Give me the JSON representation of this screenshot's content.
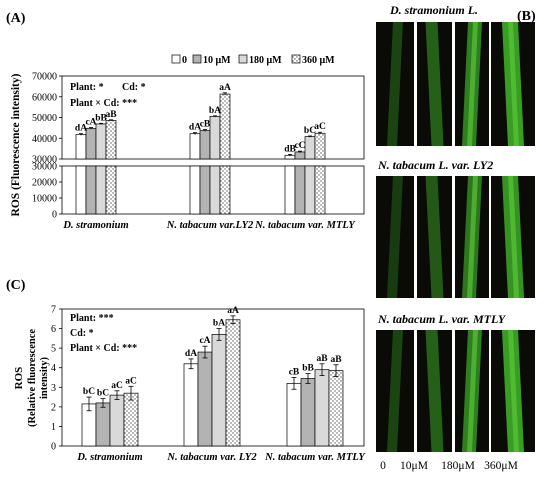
{
  "panel_labels": {
    "a": "(A)",
    "b": "(B)",
    "c": "(C)"
  },
  "chart_data": [
    {
      "type": "bar",
      "panel": "(A)",
      "categories": [
        "D. stramonium",
        "N. tabacum var.LY2",
        "N. tabacum var. MTLY"
      ],
      "ylabel": "ROS (Fluorescence intensity)",
      "ylim": [
        0,
        70000
      ],
      "broken_axis": {
        "lower": [
          0,
          30000
        ],
        "upper": [
          30000,
          70000
        ]
      },
      "y_ticks_upper": [
        "70000",
        "60000",
        "50000",
        "40000",
        "30000"
      ],
      "y_ticks_lower": [
        "30000",
        "20000",
        "10000",
        "0"
      ],
      "legend": [
        "0",
        "10 μM",
        "180 μM",
        "360 μM"
      ],
      "legend_position": "top-right",
      "stats": [
        "Plant: *",
        "Cd: *",
        "Plant × Cd: ***"
      ],
      "series": [
        {
          "name": "0",
          "values": [
            41800,
            42200,
            31800
          ],
          "errors": [
            400,
            500,
            400
          ],
          "labels": [
            "dA",
            "dA",
            "dB"
          ]
        },
        {
          "name": "10 μM",
          "values": [
            44800,
            43700,
            33400
          ],
          "errors": [
            400,
            500,
            400
          ],
          "labels": [
            "cA",
            "cB",
            "cC"
          ]
        },
        {
          "name": "180 μM",
          "values": [
            46900,
            50500,
            40800
          ],
          "errors": [
            300,
            300,
            300
          ],
          "labels": [
            "bB",
            "bA",
            "bC"
          ]
        },
        {
          "name": "360 μM",
          "values": [
            48600,
            61300,
            42400
          ],
          "errors": [
            300,
            600,
            500
          ],
          "labels": [
            "aB",
            "aA",
            "aC"
          ]
        }
      ]
    },
    {
      "type": "bar",
      "panel": "(C)",
      "categories": [
        "D. stramonium",
        "N. tabacum var. LY2",
        "N. tabacum var. MTLY"
      ],
      "ylabel": "ROS (Relative fluorescence intensity)",
      "ylim": [
        0,
        7
      ],
      "y_ticks": [
        "0",
        "1",
        "2",
        "3",
        "4",
        "5",
        "6",
        "7"
      ],
      "stats": [
        "Plant: ***",
        "Cd: *",
        "Plant × Cd: ***"
      ],
      "series": [
        {
          "name": "0",
          "values": [
            2.15,
            4.2,
            3.2
          ],
          "errors": [
            0.35,
            0.25,
            0.3
          ],
          "labels": [
            "bC",
            "dA",
            "cB"
          ]
        },
        {
          "name": "10 μM",
          "values": [
            2.2,
            4.8,
            3.45
          ],
          "errors": [
            0.22,
            0.3,
            0.25
          ],
          "labels": [
            "bC",
            "cA",
            "bB"
          ]
        },
        {
          "name": "180 μM",
          "values": [
            2.6,
            5.7,
            3.9
          ],
          "errors": [
            0.22,
            0.3,
            0.3
          ],
          "labels": [
            "aC",
            "bA",
            "aB"
          ]
        },
        {
          "name": "360 μM",
          "values": [
            2.7,
            6.45,
            3.85
          ],
          "errors": [
            0.35,
            0.2,
            0.3
          ],
          "labels": [
            "aC",
            "aA",
            "aB"
          ]
        }
      ]
    }
  ],
  "micrographs": {
    "rows": [
      {
        "title": "D. stramonium L."
      },
      {
        "title": "N. tabacum L. var. LY2"
      },
      {
        "title": "N. tabacum L. var. MTLY"
      }
    ],
    "columns": [
      "0",
      "10μM",
      "180μM",
      "360μM"
    ],
    "colors": {
      "background": "#0a0a06",
      "fluorescence": "#3fae2a",
      "bright": "#5fd03a"
    }
  }
}
